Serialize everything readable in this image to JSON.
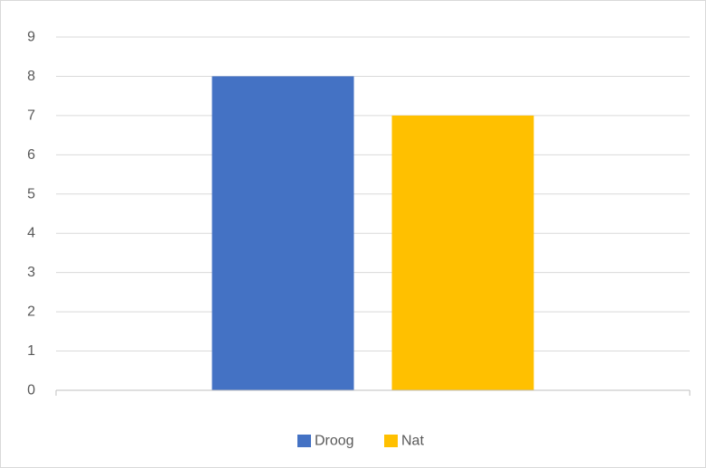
{
  "chart_data": {
    "type": "bar",
    "title": "",
    "xlabel": "",
    "ylabel": "",
    "categories": [
      ""
    ],
    "series": [
      {
        "name": "Droog",
        "values": [
          8
        ],
        "color": "#4472C4"
      },
      {
        "name": "Nat",
        "values": [
          7
        ],
        "color": "#FFC000"
      }
    ],
    "ylim": [
      0,
      9
    ],
    "y_ticks": [
      0,
      1,
      2,
      3,
      4,
      5,
      6,
      7,
      8,
      9
    ],
    "y_tick_labels": [
      "0",
      "1",
      "2",
      "3",
      "4",
      "5",
      "6",
      "7",
      "8",
      "9"
    ],
    "grid": true,
    "legend_position": "bottom",
    "colors": {
      "grid": "#d9d9d9",
      "axis": "#bfbfbf",
      "text": "#595959"
    }
  }
}
